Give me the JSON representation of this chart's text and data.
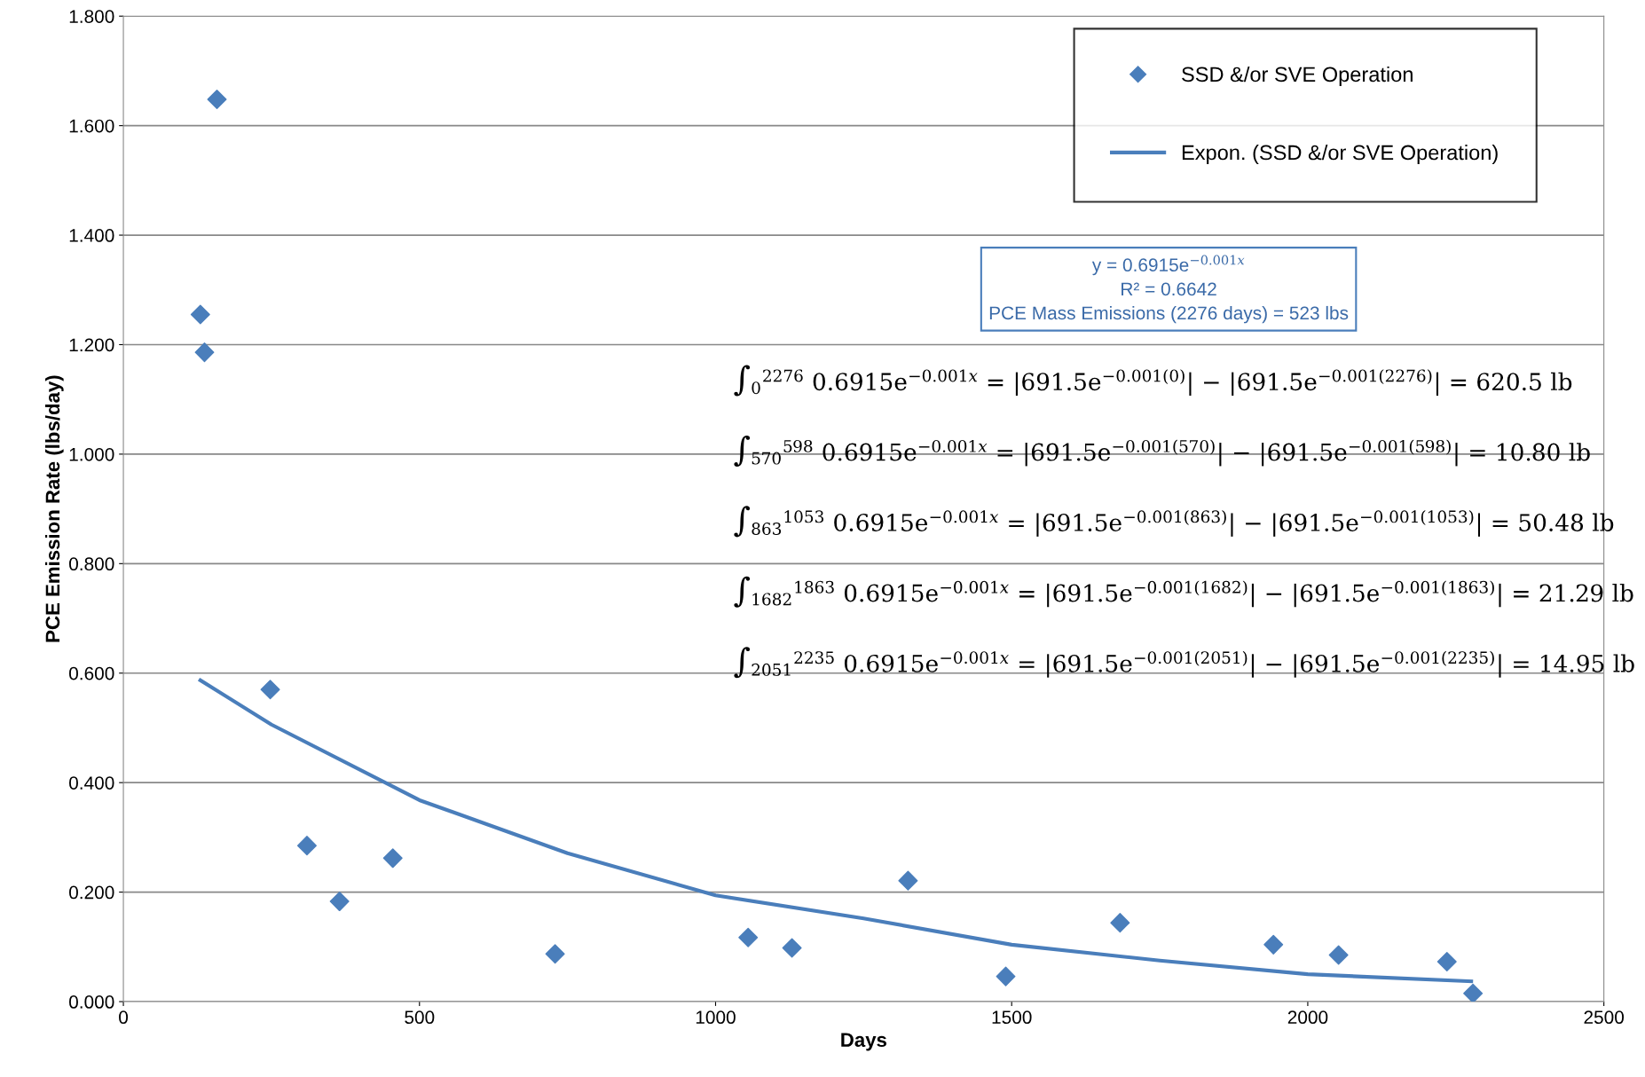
{
  "chart_data": {
    "type": "scatter",
    "xlabel": "Days",
    "ylabel": "PCE Emission Rate (lbs/day)",
    "xlim": [
      0,
      2500
    ],
    "xticks": [
      0,
      500,
      1000,
      1500,
      2000,
      2500
    ],
    "ylim": [
      0,
      1.8
    ],
    "yticks": [
      {
        "value": 0,
        "label": "0.000"
      },
      {
        "value": 0.2,
        "label": "0.200"
      },
      {
        "value": 0.4,
        "label": "0.400"
      },
      {
        "value": 0.6,
        "label": "0.600"
      },
      {
        "value": 0.8,
        "label": "0.800"
      },
      {
        "value": 1.0,
        "label": "1.000"
      },
      {
        "value": 1.2,
        "label": "1.200"
      },
      {
        "value": 1.4,
        "label": "1.400"
      },
      {
        "value": 1.6,
        "label": "1.600"
      },
      {
        "value": 1.8,
        "label": "1.800"
      }
    ],
    "grid": "y",
    "legend": "top right",
    "series": [
      {
        "name": "SSD &/or SVE Operation",
        "marker": "diamond",
        "color": "#4a7ebb",
        "x": [
          130,
          137,
          158,
          248,
          310,
          365,
          455,
          729,
          1055,
          1129,
          1325,
          1490,
          1683,
          1942,
          2052,
          2235,
          2279
        ],
        "values": [
          1.255,
          1.186,
          1.648,
          0.57,
          0.285,
          0.183,
          0.262,
          0.087,
          0.117,
          0.098,
          0.221,
          0.046,
          0.144,
          0.104,
          0.085,
          0.073,
          0.015
        ]
      },
      {
        "name": "Expon. (SSD &/or SVE Operation)",
        "type": "line",
        "marker": "none",
        "line_style": "solid",
        "color": "#4a7ebb",
        "x": [
          130,
          250,
          500,
          750,
          1000,
          1250,
          1500,
          1750,
          2000,
          2276
        ],
        "values": [
          0.587,
          0.506,
          0.368,
          0.271,
          0.194,
          0.152,
          0.104,
          0.075,
          0.05,
          0.037
        ]
      }
    ],
    "annotations": [
      "y = 0.6915e$^{−0.001x}$\nR² = 0.6642\nPCE Mass Emissions (2276 days) = 523 lbs",
      "∫$_{0}$$^{2276}$ 0.6915e$^{−0.001x}$ = |691.5e$^{−0.001(0)}$| − |691.5e$^{−0.001(2276)}$| = 620.5 lb",
      "∫$_{570}$$^{598}$ 0.6915e$^{−0.001x}$ = |691.5e$^{−0.001(570)}$| − |691.5e$^{−0.001(598)}$| = 10.80 lb",
      "∫$_{863}$$^{1053}$ 0.6915e$^{−0.001x}$ = |691.5e$^{−0.001(863)}$| − |691.5e$^{−0.001(1053)}$| = 50.48 lb",
      "∫$_{1682}$$^{1863}$ 0.6915e$^{−0.001x}$ = |691.5e$^{−0.001(1682)}$| − |691.5e$^{−0.001(1863)}$| = 21.29 lb",
      "∫$_{2051}$$^{2235}$ 0.6915e$^{−0.001x}$ = |691.5e$^{−0.001(2051)}$| − |691.5e$^{−0.001(2235)}$| = 14.95 lb"
    ]
  }
}
